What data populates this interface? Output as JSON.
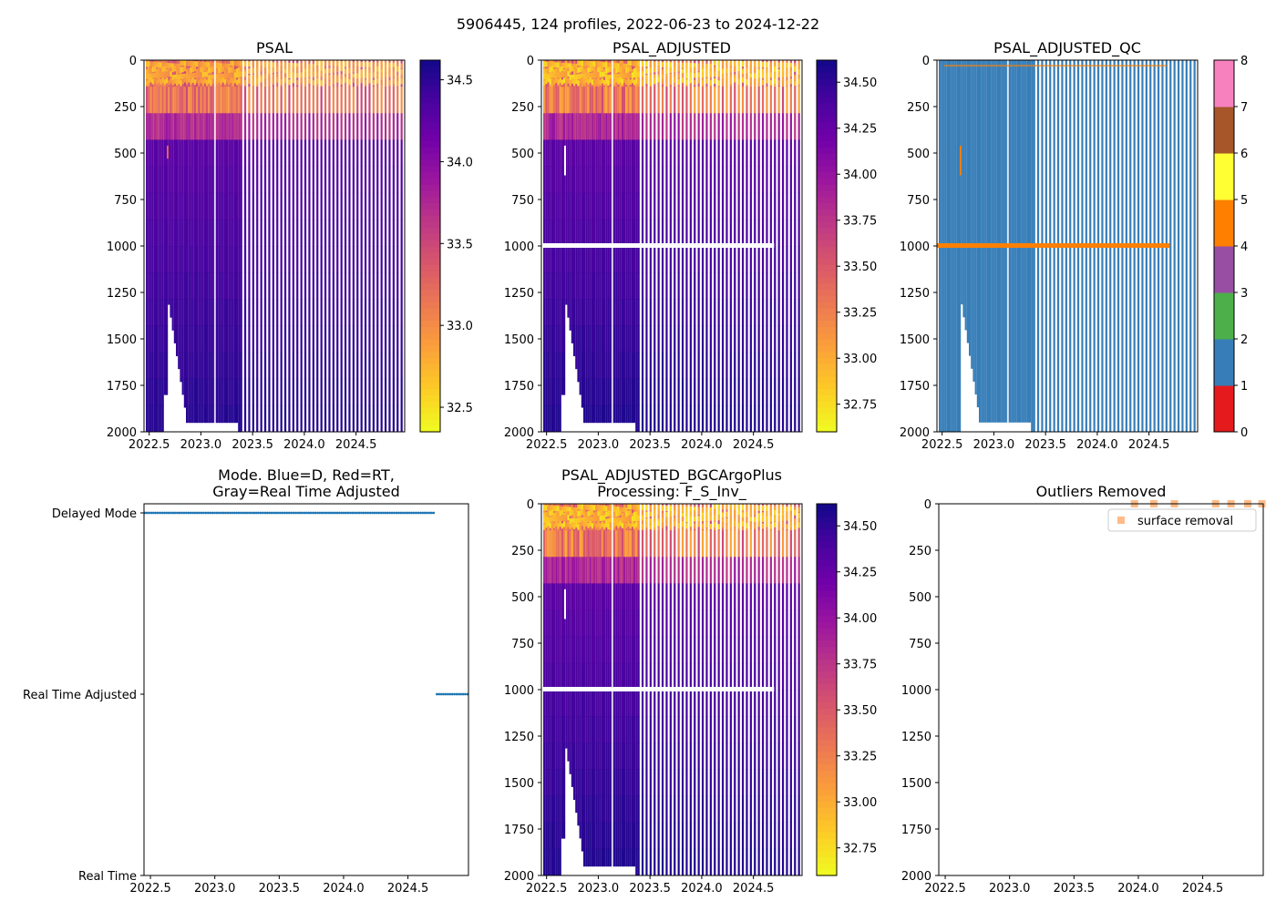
{
  "suptitle": "5906445, 124 profiles, 2022-06-23 to 2024-12-22",
  "colors": {
    "plasma": [
      "#0d0887",
      "#46039f",
      "#7201a8",
      "#9c179e",
      "#bd3786",
      "#d8576b",
      "#ed7953",
      "#fb9f3a",
      "#fdca26",
      "#f0f921"
    ],
    "qc": [
      "#e41a1c",
      "#377eb8",
      "#4daf4a",
      "#984ea3",
      "#ff7f00",
      "#ffff33",
      "#a65628",
      "#f781bf",
      "#999999"
    ],
    "mode_marker": "#1f77b4",
    "outlier_marker": "#ffbb88"
  },
  "chart_data": [
    {
      "id": "psal",
      "type": "heatmap",
      "title": "PSAL",
      "xlim": [
        2022.45,
        2024.97
      ],
      "ylim": [
        2000,
        0
      ],
      "xticks": [
        "2022.5",
        "2023.0",
        "2023.5",
        "2024.0",
        "2024.5"
      ],
      "yticks": [
        "0",
        "250",
        "500",
        "750",
        "1000",
        "1250",
        "1500",
        "1750",
        "2000"
      ],
      "colorbar": {
        "range": [
          32.35,
          34.62
        ],
        "ticks": [
          "32.5",
          "33.0",
          "33.5",
          "34.0",
          "34.5"
        ]
      },
      "surface_value": 32.9,
      "deep_value": 34.55,
      "gap_at_1000m": false
    },
    {
      "id": "psal_adjusted",
      "type": "heatmap",
      "title": "PSAL_ADJUSTED",
      "xlim": [
        2022.45,
        2024.97
      ],
      "ylim": [
        2000,
        0
      ],
      "xticks": [
        "2022.5",
        "2023.0",
        "2023.5",
        "2024.0",
        "2024.5"
      ],
      "yticks": [
        "0",
        "250",
        "500",
        "750",
        "1000",
        "1250",
        "1500",
        "1750",
        "2000"
      ],
      "colorbar": {
        "range": [
          32.6,
          34.62
        ],
        "ticks": [
          "32.75",
          "33.00",
          "33.25",
          "33.50",
          "33.75",
          "34.00",
          "34.25",
          "34.50"
        ]
      },
      "surface_value": 33.0,
      "deep_value": 34.58,
      "gap_at_1000m": true
    },
    {
      "id": "psal_adjusted_qc",
      "type": "heatmap",
      "title": "PSAL_ADJUSTED_QC",
      "xlim": [
        2022.45,
        2024.97
      ],
      "ylim": [
        2000,
        0
      ],
      "xticks": [
        "2022.5",
        "2023.0",
        "2023.5",
        "2024.0",
        "2024.5"
      ],
      "yticks": [
        "0",
        "250",
        "500",
        "750",
        "1000",
        "1250",
        "1500",
        "1750",
        "2000"
      ],
      "colorbar": {
        "range": [
          0,
          8
        ],
        "ticks": [
          "0",
          "1",
          "2",
          "3",
          "4",
          "5",
          "6",
          "7",
          "8"
        ]
      },
      "dominant_flag": 1,
      "band_flag_at_1000m": 4
    },
    {
      "id": "mode",
      "type": "scatter",
      "title": "Mode. Blue=D, Red=RT,\nGray=Real Time Adjusted",
      "xlim": [
        2022.45,
        2024.97
      ],
      "xticks": [
        "2022.5",
        "2023.0",
        "2023.5",
        "2024.0",
        "2024.5"
      ],
      "ycategories": [
        "Real Time",
        "Real Time Adjusted",
        "Delayed Mode"
      ],
      "series": [
        {
          "name": "Delayed Mode",
          "x_range": [
            2022.45,
            2024.7
          ],
          "level": 2
        },
        {
          "name": "Real Time Adjusted",
          "x_range": [
            2024.72,
            2024.97
          ],
          "level": 1
        }
      ]
    },
    {
      "id": "psal_bgc",
      "type": "heatmap",
      "title": "PSAL_ADJUSTED_BGCArgoPlus\nProcessing: F_S_Inv_",
      "xlim": [
        2022.45,
        2024.97
      ],
      "ylim": [
        2000,
        0
      ],
      "xticks": [
        "2022.5",
        "2023.0",
        "2023.5",
        "2024.0",
        "2024.5"
      ],
      "yticks": [
        "0",
        "250",
        "500",
        "750",
        "1000",
        "1250",
        "1500",
        "1750",
        "2000"
      ],
      "colorbar": {
        "range": [
          32.6,
          34.62
        ],
        "ticks": [
          "32.75",
          "33.00",
          "33.25",
          "33.50",
          "33.75",
          "34.00",
          "34.25",
          "34.50"
        ]
      },
      "surface_value": 33.0,
      "deep_value": 34.58,
      "gap_at_1000m": true
    },
    {
      "id": "outliers",
      "type": "scatter",
      "title": "Outliers Removed",
      "xlim": [
        2022.45,
        2024.97
      ],
      "ylim": [
        2000,
        0
      ],
      "xticks": [
        "2022.5",
        "2023.0",
        "2023.5",
        "2024.0",
        "2024.5"
      ],
      "yticks": [
        "0",
        "250",
        "500",
        "750",
        "1000",
        "1250",
        "1500",
        "1750",
        "2000"
      ],
      "legend": {
        "label": "surface removal",
        "position": "top-right"
      },
      "points": [
        {
          "x": 2023.97,
          "y": 0
        },
        {
          "x": 2024.12,
          "y": 0
        },
        {
          "x": 2024.28,
          "y": 0
        },
        {
          "x": 2024.6,
          "y": 0
        },
        {
          "x": 2024.72,
          "y": 0
        },
        {
          "x": 2024.85,
          "y": 0
        },
        {
          "x": 2024.96,
          "y": 0
        }
      ]
    }
  ]
}
